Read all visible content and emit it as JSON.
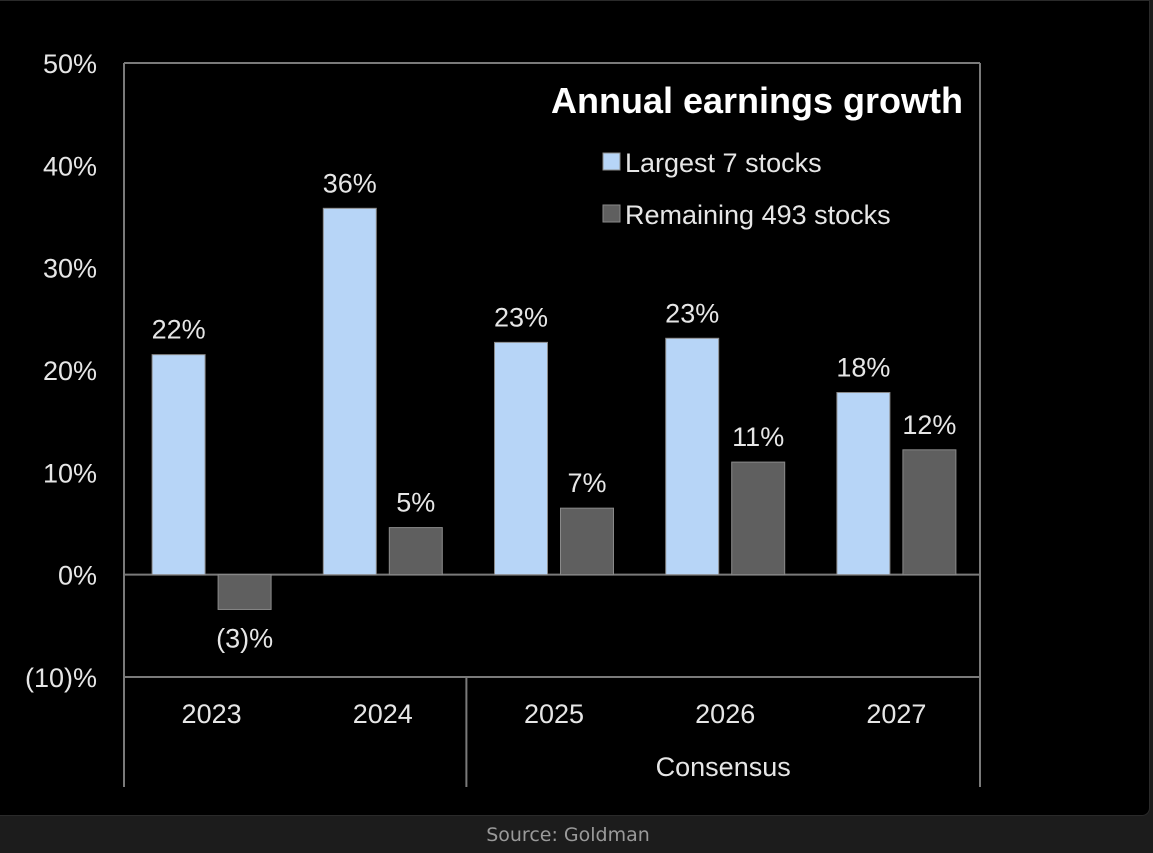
{
  "caption": "Source: Goldman",
  "chart_data": {
    "type": "bar",
    "title": "Annual earnings growth",
    "xlabel": "",
    "ylabel": "",
    "ylim": [
      -10,
      50
    ],
    "yticks": [
      50,
      40,
      30,
      20,
      10,
      0,
      -10
    ],
    "ytick_labels": [
      "50%",
      "40%",
      "30%",
      "20%",
      "10%",
      "0%",
      "(10)%"
    ],
    "categories": [
      "2023",
      "2024",
      "2025",
      "2026",
      "2027"
    ],
    "category_groups": [
      {
        "label": "",
        "categories": [
          "2023",
          "2024"
        ]
      },
      {
        "label": "Consensus",
        "categories": [
          "2025",
          "2026",
          "2027"
        ]
      }
    ],
    "grid": false,
    "legend_position": "top-right",
    "series": [
      {
        "name": "Largest 7 stocks",
        "color": "#b7d5f7",
        "values": [
          21.5,
          35.8,
          22.7,
          23.1,
          17.8
        ],
        "data_labels": [
          "22%",
          "36%",
          "23%",
          "23%",
          "18%"
        ]
      },
      {
        "name": "Remaining 493 stocks",
        "color": "#5f5f5f",
        "values": [
          -3.4,
          4.6,
          6.5,
          11.0,
          12.2
        ],
        "data_labels": [
          "(3)%",
          "5%",
          "7%",
          "11%",
          "12%"
        ]
      }
    ]
  }
}
